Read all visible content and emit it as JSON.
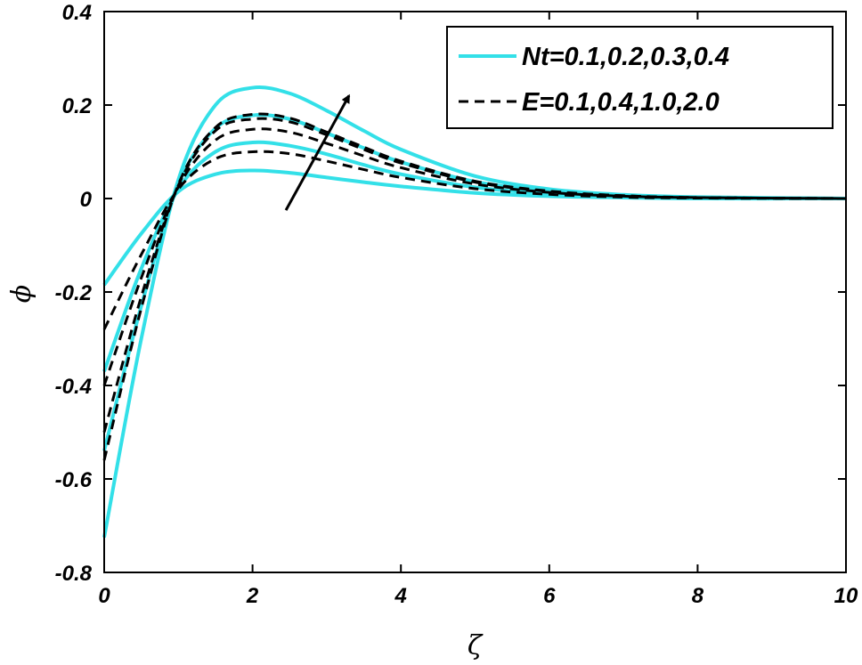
{
  "chart_data": {
    "type": "line",
    "xlabel": "ζ",
    "ylabel": "ϕ",
    "xlim": [
      0,
      10
    ],
    "ylim": [
      -0.8,
      0.4
    ],
    "xticks": [
      "0",
      "2",
      "4",
      "6",
      "8",
      "10"
    ],
    "yticks": [
      "0.4",
      "0.2",
      "0",
      "-0.2",
      "-0.4",
      "-0.6",
      "-0.8"
    ],
    "grid": false,
    "legend_position": "top-right",
    "legend": [
      {
        "label": "Nt=0.1,0.2,0.3,0.4",
        "style": "solid",
        "color": "#33e0e8"
      },
      {
        "label": "E=0.1,0.4,1.0,2.0",
        "style": "dashed",
        "color": "#000000"
      }
    ],
    "series": [
      {
        "style": "solid",
        "color": "#33e0e8",
        "x": [
          0,
          0.5,
          1.0,
          1.5,
          2.0,
          2.5,
          3.0,
          3.5,
          4.0,
          5.0,
          6.0,
          7.0,
          8.0,
          10.0
        ],
        "y": [
          -0.185,
          -0.075,
          0.015,
          0.052,
          0.06,
          0.055,
          0.045,
          0.035,
          0.026,
          0.012,
          0.005,
          0.002,
          0.0,
          0.0
        ]
      },
      {
        "style": "solid",
        "color": "#33e0e8",
        "x": [
          0,
          0.5,
          1.0,
          1.5,
          2.0,
          2.5,
          3.0,
          3.5,
          4.0,
          5.0,
          6.0,
          7.0,
          8.0,
          10.0
        ],
        "y": [
          -0.37,
          -0.15,
          0.02,
          0.1,
          0.12,
          0.113,
          0.095,
          0.072,
          0.052,
          0.024,
          0.01,
          0.004,
          0.001,
          0.0
        ]
      },
      {
        "style": "solid",
        "color": "#33e0e8",
        "x": [
          0,
          0.5,
          1.0,
          1.5,
          2.0,
          2.5,
          3.0,
          3.5,
          4.0,
          5.0,
          6.0,
          7.0,
          8.0,
          10.0
        ],
        "y": [
          -0.54,
          -0.23,
          0.03,
          0.15,
          0.178,
          0.17,
          0.14,
          0.108,
          0.078,
          0.036,
          0.015,
          0.006,
          0.002,
          0.0
        ]
      },
      {
        "style": "solid",
        "color": "#33e0e8",
        "x": [
          0,
          0.5,
          1.0,
          1.5,
          2.0,
          2.5,
          3.0,
          3.5,
          4.0,
          5.0,
          6.0,
          7.0,
          8.0,
          10.0
        ],
        "y": [
          -0.725,
          -0.3,
          0.04,
          0.2,
          0.237,
          0.225,
          0.188,
          0.145,
          0.105,
          0.048,
          0.02,
          0.008,
          0.003,
          0.0
        ]
      },
      {
        "style": "dashed",
        "color": "#000000",
        "x": [
          0,
          0.5,
          1.0,
          1.5,
          2.0,
          2.5,
          3.0,
          3.5,
          4.0,
          5.0,
          6.0,
          7.0,
          8.0,
          10.0
        ],
        "y": [
          -0.28,
          -0.12,
          0.02,
          0.085,
          0.1,
          0.096,
          0.08,
          0.062,
          0.045,
          0.021,
          0.009,
          0.003,
          0.001,
          0.0
        ]
      },
      {
        "style": "dashed",
        "color": "#000000",
        "x": [
          0,
          0.5,
          1.0,
          1.5,
          2.0,
          2.5,
          3.0,
          3.5,
          4.0,
          5.0,
          6.0,
          7.0,
          8.0,
          10.0
        ],
        "y": [
          -0.4,
          -0.17,
          0.025,
          0.125,
          0.148,
          0.142,
          0.118,
          0.091,
          0.066,
          0.031,
          0.013,
          0.005,
          0.002,
          0.0
        ]
      },
      {
        "style": "dashed",
        "color": "#000000",
        "x": [
          0,
          0.5,
          1.0,
          1.5,
          2.0,
          2.5,
          3.0,
          3.5,
          4.0,
          5.0,
          6.0,
          7.0,
          8.0,
          10.0
        ],
        "y": [
          -0.5,
          -0.21,
          0.028,
          0.145,
          0.17,
          0.164,
          0.136,
          0.105,
          0.076,
          0.035,
          0.015,
          0.006,
          0.002,
          0.0
        ]
      },
      {
        "style": "dashed",
        "color": "#000000",
        "x": [
          0,
          0.5,
          1.0,
          1.5,
          2.0,
          2.5,
          3.0,
          3.5,
          4.0,
          5.0,
          6.0,
          7.0,
          8.0,
          10.0
        ],
        "y": [
          -0.56,
          -0.235,
          0.03,
          0.152,
          0.18,
          0.172,
          0.142,
          0.11,
          0.08,
          0.037,
          0.016,
          0.006,
          0.002,
          0.0
        ]
      }
    ],
    "annotation": {
      "type": "arrow",
      "from": [
        2.45,
        -0.025
      ],
      "to": [
        3.3,
        0.22
      ],
      "color": "#000000"
    }
  }
}
